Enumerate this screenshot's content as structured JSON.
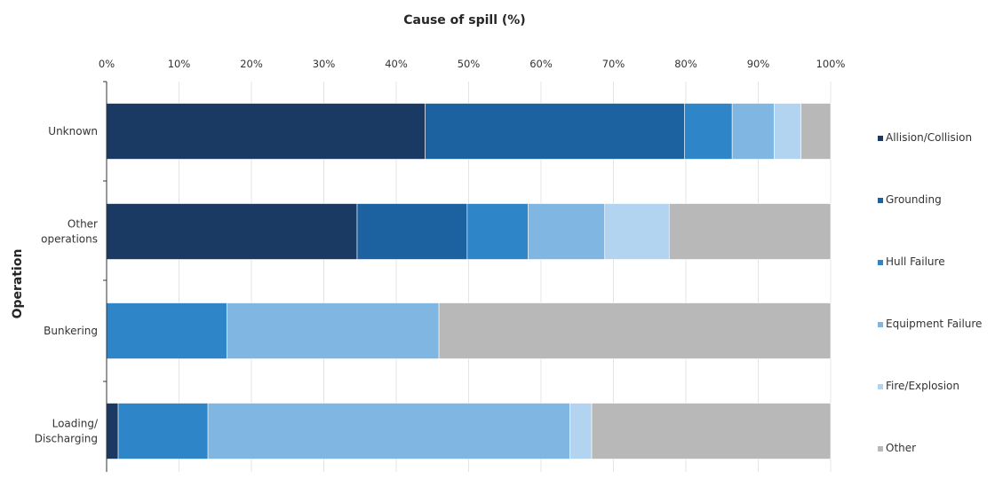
{
  "chart_data": {
    "type": "bar",
    "orientation": "horizontal",
    "stacked": true,
    "title": "Cause of spill (%)",
    "xlabel": "Cause of spill (%)",
    "ylabel": "Operation",
    "xlim": [
      0,
      100
    ],
    "x_ticks": [
      "0%",
      "10%",
      "20%",
      "30%",
      "40%",
      "50%",
      "60%",
      "70%",
      "80%",
      "90%",
      "100%"
    ],
    "categories": [
      {
        "lines": [
          "Unknown"
        ]
      },
      {
        "lines": [
          "Other",
          "operations"
        ]
      },
      {
        "lines": [
          "Bunkering"
        ]
      },
      {
        "lines": [
          "Loading/",
          "Discharging"
        ]
      }
    ],
    "series": [
      {
        "name": "Allision/Collision",
        "color": "#1b3a63",
        "values": [
          44,
          34.6,
          0,
          1.6
        ]
      },
      {
        "name": "Grounding",
        "color": "#1d62a0",
        "values": [
          35.8,
          15.2,
          0,
          0
        ]
      },
      {
        "name": "Hull Failure",
        "color": "#2e86c9",
        "values": [
          6.6,
          8.4,
          16.6,
          12.4
        ]
      },
      {
        "name": "Equipment Failure",
        "color": "#7fb6e2",
        "values": [
          5.8,
          10.6,
          29.3,
          50
        ]
      },
      {
        "name": "Fire/Explosion",
        "color": "#b3d4f0",
        "values": [
          3.7,
          8.9,
          0,
          3
        ]
      },
      {
        "name": "Other",
        "color": "#b8b8b8",
        "values": [
          4.1,
          22.3,
          54.1,
          33
        ]
      }
    ],
    "grid": true,
    "legend_position": "right"
  }
}
